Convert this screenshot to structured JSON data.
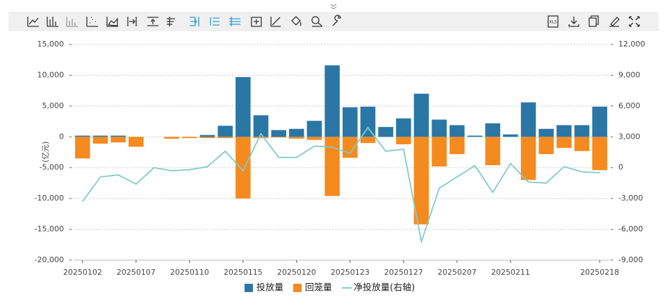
{
  "chart_data": {
    "type": "bar-line",
    "ylabel": "(亿元)",
    "categories": [
      "20250102",
      null,
      null,
      "20250107",
      null,
      null,
      "20250110",
      null,
      null,
      "20250115",
      null,
      null,
      "20250120",
      null,
      null,
      "20250123",
      null,
      null,
      "20250127",
      null,
      null,
      "20250207",
      null,
      null,
      "20250211",
      null,
      null,
      null,
      null,
      "20250218"
    ],
    "series": [
      {
        "name": "投放量",
        "color": "#2a77a6",
        "type": "bar",
        "values": [
          200,
          200,
          200,
          0,
          0,
          0,
          0,
          300,
          1800,
          9700,
          3500,
          1100,
          1300,
          2600,
          11600,
          4800,
          4900,
          1600,
          3000,
          7000,
          2800,
          1900,
          200,
          2200,
          400,
          5600,
          1300,
          1900,
          1900,
          4900
        ]
      },
      {
        "name": "回笼量",
        "color": "#f58a1f",
        "type": "bar",
        "values": [
          -3500,
          -1100,
          -900,
          -1600,
          0,
          -300,
          -200,
          -200,
          -200,
          -10000,
          -200,
          -100,
          -300,
          -500,
          -9600,
          -3400,
          -1000,
          0,
          -1200,
          -14200,
          -4800,
          -2800,
          0,
          -4600,
          0,
          -7000,
          -2800,
          -1800,
          -2300,
          -5400
        ]
      },
      {
        "name": "净投放量(右轴)",
        "color": "#7ecdc8",
        "type": "line",
        "axis": "y2",
        "values": [
          -3300,
          -900,
          -700,
          -1600,
          0,
          -300,
          -200,
          100,
          1600,
          -300,
          3300,
          1000,
          1000,
          2100,
          2000,
          1400,
          3900,
          1600,
          1800,
          -7200,
          -2000,
          -900,
          200,
          -2400,
          400,
          -1400,
          -1500,
          100,
          -400,
          -500
        ]
      }
    ],
    "ylim": [
      -20000,
      15000
    ],
    "yticks": [
      {
        "value": -20000,
        "label": "-20,000"
      },
      {
        "value": -15000,
        "label": "-15,000"
      },
      {
        "value": -10000,
        "label": "-10,000"
      },
      {
        "value": -5000,
        "label": "-5,000"
      },
      0,
      {
        "value": 5000,
        "label": "5,000"
      },
      {
        "value": 10000,
        "label": "10,000"
      },
      {
        "value": 15000,
        "label": "15,000"
      }
    ],
    "y2lim": [
      -9000,
      12000
    ],
    "y2ticks": [
      {
        "value": -9000,
        "label": "-9,000"
      },
      {
        "value": -6000,
        "label": "-6,000"
      },
      {
        "value": -3000,
        "label": "-3,000"
      },
      0,
      {
        "value": 3000,
        "label": "3,000"
      },
      {
        "value": 6000,
        "label": "6,000"
      },
      {
        "value": 9000,
        "label": "9,000"
      },
      {
        "value": 12000,
        "label": "12,000"
      }
    ],
    "grid": true,
    "legend": "bottom",
    "toolbar_export": "XLS"
  }
}
